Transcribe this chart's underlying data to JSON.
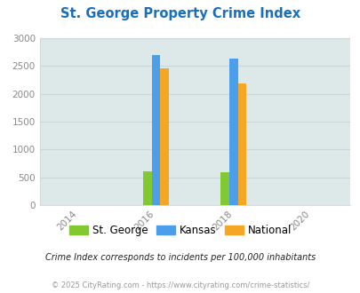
{
  "title": "St. George Property Crime Index",
  "title_color": "#1a6fbd",
  "plot_bg_color": "#dde8e8",
  "fig_bg_color": "#ffffff",
  "years": [
    2016,
    2018
  ],
  "x_ticks": [
    2014,
    2016,
    2018,
    2020
  ],
  "ylim": [
    0,
    3000
  ],
  "y_ticks": [
    0,
    500,
    1000,
    1500,
    2000,
    2500,
    3000
  ],
  "series": {
    "St. George": {
      "values": [
        610,
        595
      ],
      "color": "#82c831"
    },
    "Kansas": {
      "values": [
        2700,
        2630
      ],
      "color": "#4a9eea"
    },
    "National": {
      "values": [
        2460,
        2190
      ],
      "color": "#f5a623"
    }
  },
  "bar_width": 0.22,
  "legend_labels": [
    "St. George",
    "Kansas",
    "National"
  ],
  "legend_colors": [
    "#82c831",
    "#4a9eea",
    "#f5a623"
  ],
  "footnote1": "Crime Index corresponds to incidents per 100,000 inhabitants",
  "footnote2": "© 2025 CityRating.com - https://www.cityrating.com/crime-statistics/",
  "footnote1_color": "#222222",
  "footnote2_color": "#999999",
  "tick_label_color": "#888888",
  "grid_color": "#c8d8d8",
  "xlim": [
    2013,
    2021
  ]
}
